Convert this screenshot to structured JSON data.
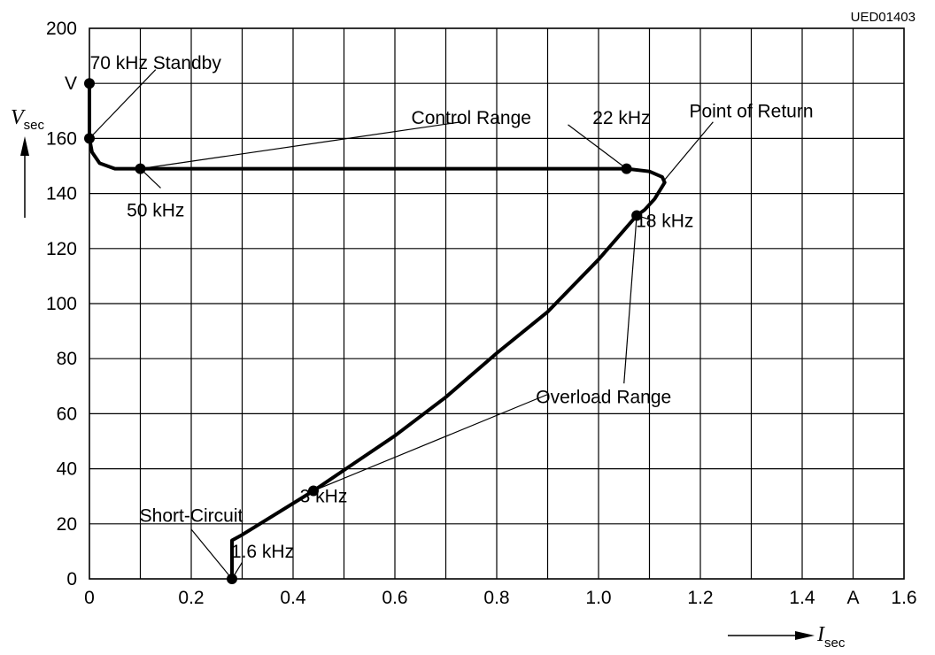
{
  "figure_code": "UED01403",
  "chart_data": {
    "type": "line",
    "xlabel": {
      "symbol": "I",
      "subscript": "sec"
    },
    "ylabel": {
      "symbol": "V",
      "subscript": "sec"
    },
    "xlim": [
      0,
      1.6
    ],
    "ylim": [
      0,
      200
    ],
    "grid": true,
    "x_ticks": [
      {
        "value": 0,
        "label": "0"
      },
      {
        "value": 0.2,
        "label": "0.2"
      },
      {
        "value": 0.4,
        "label": "0.4"
      },
      {
        "value": 0.6,
        "label": "0.6"
      },
      {
        "value": 0.8,
        "label": "0.8"
      },
      {
        "value": 1.0,
        "label": "1.0"
      },
      {
        "value": 1.2,
        "label": "1.2"
      },
      {
        "value": 1.4,
        "label": "1.4"
      },
      {
        "value": 1.5,
        "label": "A"
      },
      {
        "value": 1.6,
        "label": "1.6"
      }
    ],
    "y_ticks": [
      {
        "value": 0,
        "label": "0"
      },
      {
        "value": 20,
        "label": "20"
      },
      {
        "value": 40,
        "label": "40"
      },
      {
        "value": 60,
        "label": "60"
      },
      {
        "value": 80,
        "label": "80"
      },
      {
        "value": 100,
        "label": "100"
      },
      {
        "value": 120,
        "label": "120"
      },
      {
        "value": 140,
        "label": "140"
      },
      {
        "value": 160,
        "label": "160"
      },
      {
        "value": 180,
        "label": "V"
      },
      {
        "value": 200,
        "label": "200"
      }
    ],
    "series": [
      {
        "x": [
          0.0,
          0.0,
          0.005,
          0.02,
          0.05,
          0.1,
          0.5,
          1.0,
          1.055,
          1.1,
          1.125,
          1.13,
          1.11,
          1.09,
          1.075,
          1.0,
          0.9,
          0.8,
          0.7,
          0.6,
          0.52,
          0.44,
          0.3,
          0.28,
          0.28
        ],
        "y": [
          180,
          160,
          155,
          151,
          149,
          149,
          149,
          149,
          149,
          148,
          146,
          144,
          138,
          134,
          132,
          116,
          97,
          82,
          66,
          52,
          42,
          32,
          16,
          14,
          0
        ]
      }
    ],
    "marked_points": [
      {
        "x": 0.0,
        "y": 180
      },
      {
        "x": 0.0,
        "y": 160
      },
      {
        "x": 0.1,
        "y": 149
      },
      {
        "x": 1.055,
        "y": 149
      },
      {
        "x": 1.075,
        "y": 132
      },
      {
        "x": 0.44,
        "y": 32
      },
      {
        "x": 0.28,
        "y": 0
      }
    ],
    "annotations": [
      {
        "text": "70 kHz Standby",
        "label_x": 0.13,
        "label_y": 187.5,
        "leaders": [
          {
            "from": [
              0.13,
              185
            ],
            "to": [
              0.0,
              160
            ]
          }
        ]
      },
      {
        "text": "Control Range",
        "label_x": 0.75,
        "label_y": 167.5,
        "leaders": [
          {
            "from": [
              0.73,
              166
            ],
            "to": [
              0.1,
              149
            ]
          },
          {
            "from": [
              0.94,
              165
            ],
            "to": [
              1.055,
              149
            ]
          }
        ]
      },
      {
        "text": "22 kHz",
        "label_x": 1.045,
        "label_y": 167.5,
        "leaders": []
      },
      {
        "text": "50 kHz",
        "label_x": 0.13,
        "label_y": 134,
        "leaders": [
          {
            "from": [
              0.1,
              149
            ],
            "to": [
              0.14,
              142
            ]
          }
        ]
      },
      {
        "text": "Point of Return",
        "label_x": 1.3,
        "label_y": 170,
        "leaders": [
          {
            "from": [
              1.225,
              166
            ],
            "to": [
              1.13,
              145
            ]
          }
        ]
      },
      {
        "text": "18 kHz",
        "label_x": 1.13,
        "label_y": 130,
        "leaders": [
          {
            "from": [
              1.075,
              132
            ],
            "to": [
              1.11,
              130
            ]
          }
        ]
      },
      {
        "text": "Overload Range",
        "label_x": 1.01,
        "label_y": 66,
        "leaders": [
          {
            "from": [
              0.9,
              67
            ],
            "to": [
              0.44,
              32
            ]
          },
          {
            "from": [
              1.05,
              71
            ],
            "to": [
              1.075,
              132
            ]
          }
        ]
      },
      {
        "text": "3 kHz",
        "label_x": 0.46,
        "label_y": 30,
        "leaders": []
      },
      {
        "text": "Short-Circuit",
        "label_x": 0.2,
        "label_y": 23,
        "leaders": [
          {
            "from": [
              0.2,
              18
            ],
            "to": [
              0.28,
              0
            ]
          }
        ]
      },
      {
        "text": "1.6 kHz",
        "label_x": 0.34,
        "label_y": 10,
        "leaders": [
          {
            "from": [
              0.28,
              0
            ],
            "to": [
              0.3,
              6
            ]
          }
        ]
      }
    ]
  }
}
